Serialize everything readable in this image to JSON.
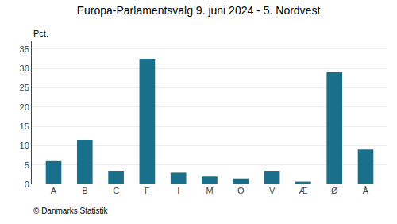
{
  "chart_data": {
    "type": "bar",
    "title": "Europa-Parlamentsvalg 9. juni 2024 - 5. Nordvest",
    "ylabel": "Pct.",
    "footer": "© Danmarks Statistik",
    "categories": [
      "A",
      "B",
      "C",
      "F",
      "I",
      "M",
      "O",
      "V",
      "Æ",
      "Ø",
      "Å"
    ],
    "values": [
      6.0,
      11.5,
      3.5,
      32.5,
      3.0,
      2.0,
      1.5,
      3.5,
      0.7,
      29.0,
      9.0
    ],
    "color": "#1a6f8a",
    "ylim": [
      0,
      37
    ],
    "yticks": [
      0,
      5,
      10,
      15,
      20,
      25,
      30,
      35
    ],
    "grid": true
  }
}
